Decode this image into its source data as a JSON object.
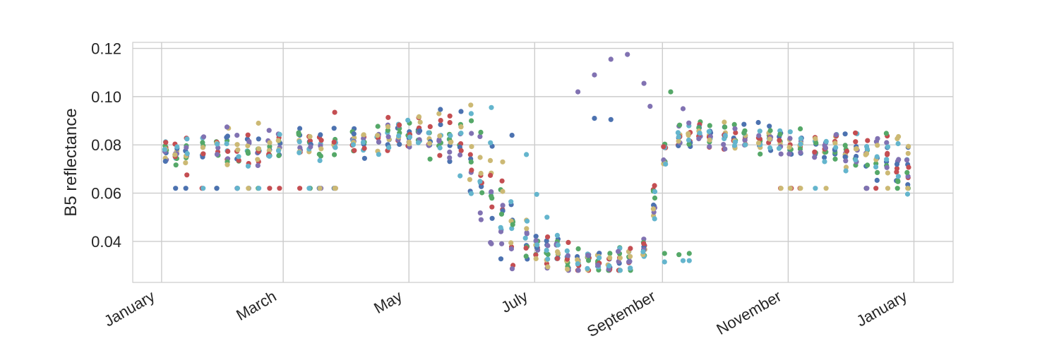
{
  "chart_data": {
    "type": "scatter",
    "title": "",
    "xlabel": "",
    "ylabel": "B5 reflectance",
    "x_axis": {
      "type": "date",
      "range": [
        "2016-12-18",
        "2018-01-20"
      ],
      "ticks": [
        {
          "date": "2017-01-01",
          "label": "January"
        },
        {
          "date": "2017-03-01",
          "label": "March"
        },
        {
          "date": "2017-05-01",
          "label": "May"
        },
        {
          "date": "2017-07-01",
          "label": "July"
        },
        {
          "date": "2017-09-01",
          "label": "September"
        },
        {
          "date": "2017-11-01",
          "label": "November"
        },
        {
          "date": "2018-01-01",
          "label": "January"
        }
      ]
    },
    "y_axis": {
      "range": [
        0.023,
        0.1225
      ],
      "ticks": [
        {
          "value": 0.04,
          "label": "0.04"
        },
        {
          "value": 0.06,
          "label": "0.06"
        },
        {
          "value": 0.08,
          "label": "0.08"
        },
        {
          "value": 0.1,
          "label": "0.10"
        },
        {
          "value": 0.12,
          "label": "0.12"
        }
      ]
    },
    "grid": true,
    "legend": "none",
    "colors": [
      "#4c72b0",
      "#55a868",
      "#c44e52",
      "#8172b2",
      "#ccb974",
      "#64b5cd"
    ],
    "profile": {
      "dates": [
        "2017-01-04",
        "2017-01-28",
        "2017-02-07",
        "2017-02-25",
        "2017-03-09",
        "2017-03-31",
        "2017-04-14",
        "2017-04-28",
        "2017-05-12",
        "2017-05-26",
        "2017-06-09",
        "2017-06-19",
        "2017-07-03",
        "2017-07-21",
        "2017-08-08",
        "2017-08-22",
        "2017-09-04",
        "2017-09-20",
        "2017-10-14",
        "2017-10-30",
        "2017-11-18",
        "2017-12-02",
        "2017-12-16",
        "2017-12-28"
      ],
      "values": [
        0.076,
        0.078,
        0.078,
        0.078,
        0.08,
        0.08,
        0.082,
        0.085,
        0.084,
        0.079,
        0.065,
        0.045,
        0.037,
        0.032,
        0.031,
        0.033,
        0.082,
        0.083,
        0.082,
        0.081,
        0.08,
        0.077,
        0.074,
        0.073
      ],
      "spread": [
        0.004,
        0.004,
        0.005,
        0.003,
        0.003,
        0.003,
        0.003,
        0.003,
        0.004,
        0.008,
        0.012,
        0.008,
        0.004,
        0.003,
        0.003,
        0.003,
        0.004,
        0.003,
        0.003,
        0.003,
        0.003,
        0.004,
        0.005,
        0.005
      ]
    },
    "acquisition_dates": [
      "2017-01-03",
      "2017-01-08",
      "2017-01-13",
      "2017-01-21",
      "2017-01-28",
      "2017-02-02",
      "2017-02-07",
      "2017-02-12",
      "2017-02-17",
      "2017-02-22",
      "2017-02-27",
      "2017-03-09",
      "2017-03-14",
      "2017-03-19",
      "2017-03-26",
      "2017-04-04",
      "2017-04-09",
      "2017-04-16",
      "2017-04-21",
      "2017-04-26",
      "2017-05-01",
      "2017-05-06",
      "2017-05-11",
      "2017-05-16",
      "2017-05-21",
      "2017-05-26",
      "2017-05-31",
      "2017-06-05",
      "2017-06-10",
      "2017-06-15",
      "2017-06-20",
      "2017-06-27",
      "2017-07-02",
      "2017-07-07",
      "2017-07-12",
      "2017-07-17",
      "2017-07-22",
      "2017-07-27",
      "2017-08-01",
      "2017-08-06",
      "2017-08-11",
      "2017-08-16",
      "2017-08-23",
      "2017-08-28",
      "2017-09-02",
      "2017-09-09",
      "2017-09-14",
      "2017-09-19",
      "2017-09-24",
      "2017-10-01",
      "2017-10-06",
      "2017-10-11",
      "2017-10-18",
      "2017-10-23",
      "2017-10-28",
      "2017-11-02",
      "2017-11-07",
      "2017-11-14",
      "2017-11-19",
      "2017-11-24",
      "2017-11-29",
      "2017-12-04",
      "2017-12-09",
      "2017-12-14",
      "2017-12-19",
      "2017-12-24",
      "2017-12-29"
    ],
    "outliers": [
      {
        "date": "2017-07-22",
        "value": 0.102,
        "color": "#8172b2"
      },
      {
        "date": "2017-07-30",
        "value": 0.109,
        "color": "#8172b2"
      },
      {
        "date": "2017-08-07",
        "value": 0.1155,
        "color": "#8172b2"
      },
      {
        "date": "2017-08-15",
        "value": 0.1175,
        "color": "#8172b2"
      },
      {
        "date": "2017-08-23",
        "value": 0.1055,
        "color": "#8172b2"
      },
      {
        "date": "2017-08-26",
        "value": 0.096,
        "color": "#8172b2"
      },
      {
        "date": "2017-07-30",
        "value": 0.091,
        "color": "#4c72b0"
      },
      {
        "date": "2017-08-07",
        "value": 0.0905,
        "color": "#4c72b0"
      },
      {
        "date": "2017-09-05",
        "value": 0.102,
        "color": "#55a868"
      },
      {
        "date": "2017-09-11",
        "value": 0.095,
        "color": "#8172b2"
      },
      {
        "date": "2017-03-26",
        "value": 0.0935,
        "color": "#c44e52"
      },
      {
        "date": "2017-02-17",
        "value": 0.089,
        "color": "#ccb974"
      },
      {
        "date": "2017-05-31",
        "value": 0.0965,
        "color": "#ccb974"
      },
      {
        "date": "2017-06-10",
        "value": 0.0955,
        "color": "#64b5cd"
      },
      {
        "date": "2017-06-05",
        "value": 0.049,
        "color": "#8172b2"
      },
      {
        "date": "2017-06-10",
        "value": 0.039,
        "color": "#8172b2"
      },
      {
        "date": "2017-06-15",
        "value": 0.039,
        "color": "#8172b2"
      },
      {
        "date": "2017-07-12",
        "value": 0.0425,
        "color": "#64b5cd"
      },
      {
        "date": "2017-07-07",
        "value": 0.05,
        "color": "#64b5cd"
      },
      {
        "date": "2017-07-02",
        "value": 0.0595,
        "color": "#64b5cd"
      },
      {
        "date": "2017-06-27",
        "value": 0.076,
        "color": "#64b5cd"
      },
      {
        "date": "2017-06-20",
        "value": 0.084,
        "color": "#4c72b0"
      },
      {
        "date": "2017-09-09",
        "value": 0.0345,
        "color": "#55a868"
      },
      {
        "date": "2017-09-11",
        "value": 0.032,
        "color": "#64b5cd"
      },
      {
        "date": "2017-09-14",
        "value": 0.035,
        "color": "#55a868"
      },
      {
        "date": "2017-09-14",
        "value": 0.032,
        "color": "#64b5cd"
      },
      {
        "date": "2017-09-02",
        "value": 0.035,
        "color": "#55a868"
      },
      {
        "date": "2017-09-02",
        "value": 0.0315,
        "color": "#64b5cd"
      },
      {
        "date": "2017-12-29",
        "value": 0.0635,
        "color": "#4c72b0"
      },
      {
        "date": "2017-12-29",
        "value": 0.062,
        "color": "#ccb974"
      },
      {
        "date": "2017-12-24",
        "value": 0.062,
        "color": "#55a868"
      },
      {
        "date": "2017-12-19",
        "value": 0.076,
        "color": "#c44e52"
      },
      {
        "date": "2017-03-26",
        "value": 0.062,
        "color": "#ccb974"
      },
      {
        "date": "2017-11-02",
        "value": 0.062,
        "color": "#ccb974"
      },
      {
        "date": "2017-11-07",
        "value": 0.062,
        "color": "#ccb974"
      }
    ]
  }
}
